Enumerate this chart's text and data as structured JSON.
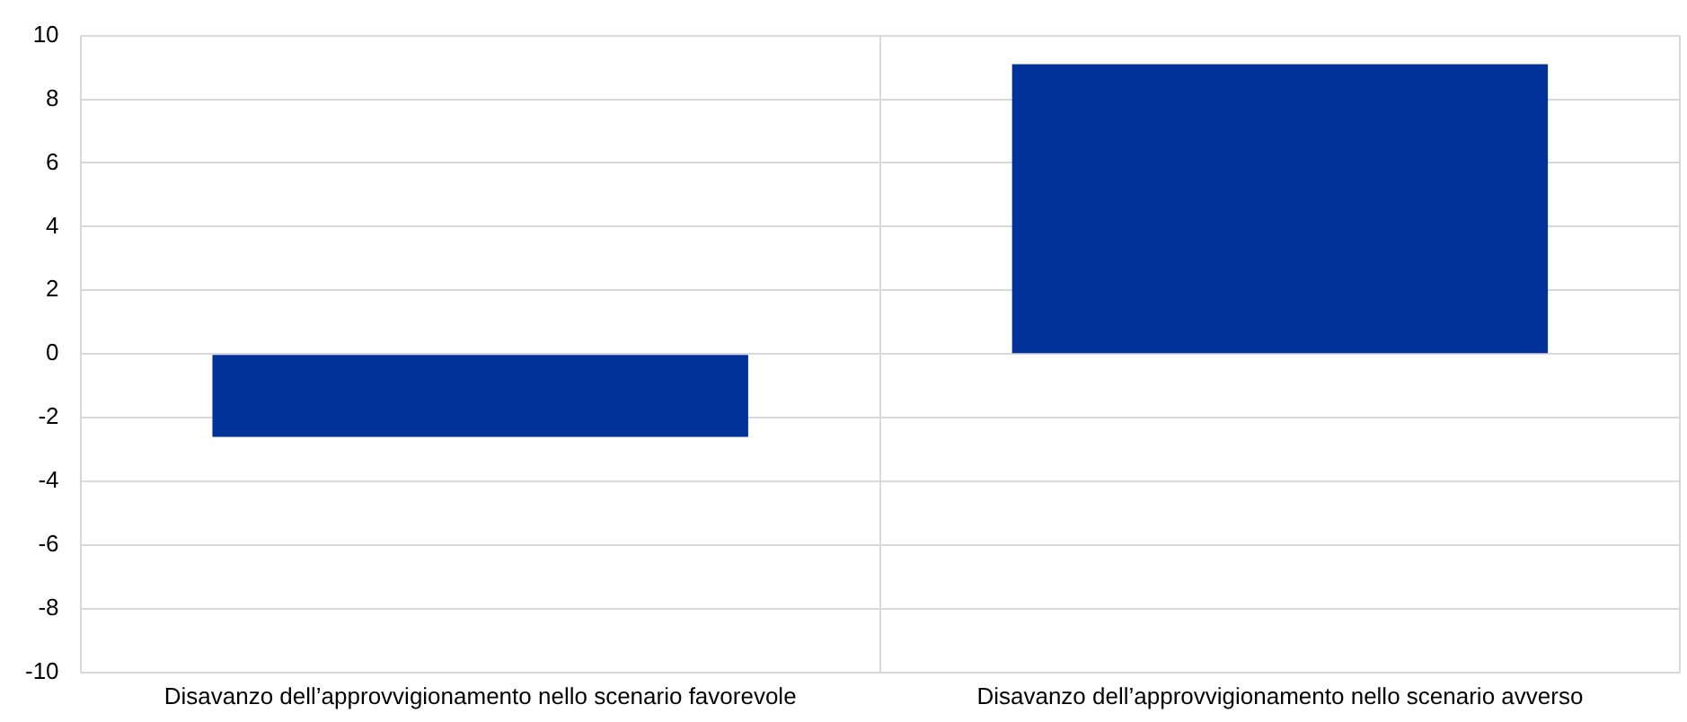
{
  "chart_data": {
    "type": "bar",
    "categories": [
      "Disavanzo dell’approvvigionamento nello scenario favorevole",
      "Disavanzo dell’approvvigionamento nello scenario avverso"
    ],
    "values": [
      -2.6,
      9.1
    ],
    "color": "#003299",
    "ylim": [
      -10,
      10
    ],
    "yticks": [
      -10,
      -8,
      -6,
      -4,
      -2,
      0,
      2,
      4,
      6,
      8,
      10
    ],
    "grid": true
  }
}
